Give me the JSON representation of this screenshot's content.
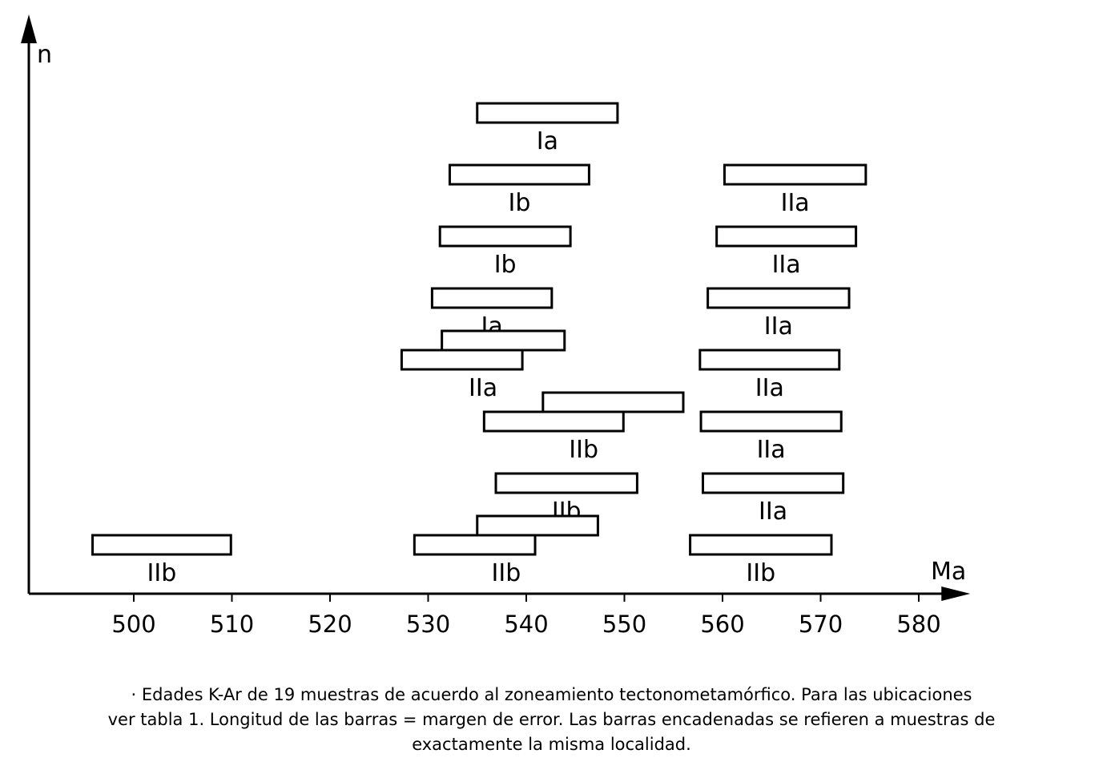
{
  "chart_data": {
    "type": "range_bar",
    "xlabel": "Ma",
    "ylabel": "n",
    "xlim": [
      490,
      585
    ],
    "xticks": [
      500,
      510,
      520,
      530,
      540,
      550,
      560,
      570,
      580
    ],
    "grid": false,
    "bars": [
      {
        "row": 8,
        "x": [
          535,
          549.3
        ],
        "label": "Ia"
      },
      {
        "row": 7,
        "x": [
          532.2,
          546.4
        ],
        "label": "Ib"
      },
      {
        "row": 6,
        "x": [
          531.2,
          544.5
        ],
        "label": "Ib"
      },
      {
        "row": 5,
        "x": [
          530.4,
          542.6
        ],
        "label": "Ia"
      },
      {
        "row": 4,
        "x": [
          527.3,
          543.9
        ],
        "label": "IIa",
        "linked": true,
        "segments": [
          [
            531.4,
            543.9
          ],
          [
            527.3,
            539.6
          ]
        ]
      },
      {
        "row": 3,
        "x": [
          535.7,
          556
        ],
        "label": "IIb",
        "linked": true,
        "segments": [
          [
            541.7,
            556
          ],
          [
            535.7,
            549.9
          ]
        ]
      },
      {
        "row": 2,
        "x": [
          536.9,
          551.3
        ],
        "label": "IIb"
      },
      {
        "row": 1,
        "x": [
          495.8,
          509.9
        ],
        "label": "IIb"
      },
      {
        "row": 1,
        "x": [
          528.6,
          547.3
        ],
        "label": "IIb",
        "linked": true,
        "segments": [
          [
            535,
            547.3
          ],
          [
            528.6,
            540.9
          ]
        ]
      },
      {
        "row": 7,
        "x": [
          560.2,
          574.6
        ],
        "label": "IIa"
      },
      {
        "row": 6,
        "x": [
          559.4,
          573.6
        ],
        "label": "IIa"
      },
      {
        "row": 5,
        "x": [
          558.5,
          572.9
        ],
        "label": "IIa"
      },
      {
        "row": 4,
        "x": [
          557.7,
          571.9
        ],
        "label": "IIa"
      },
      {
        "row": 3,
        "x": [
          557.8,
          572.1
        ],
        "label": "IIa"
      },
      {
        "row": 2,
        "x": [
          558,
          572.3
        ],
        "label": "IIa"
      },
      {
        "row": 1,
        "x": [
          556.7,
          571.1
        ],
        "label": "IIb"
      }
    ]
  },
  "caption": {
    "line1": "· Edades K-Ar de 19 muestras de acuerdo al zoneamiento tectonometamórfico. Para las ubicaciones",
    "line2": "ver tabla 1. Longitud de las barras = margen de error. Las barras encadenadas se refieren a muestras de",
    "line3": "exactamente la misma localidad."
  }
}
